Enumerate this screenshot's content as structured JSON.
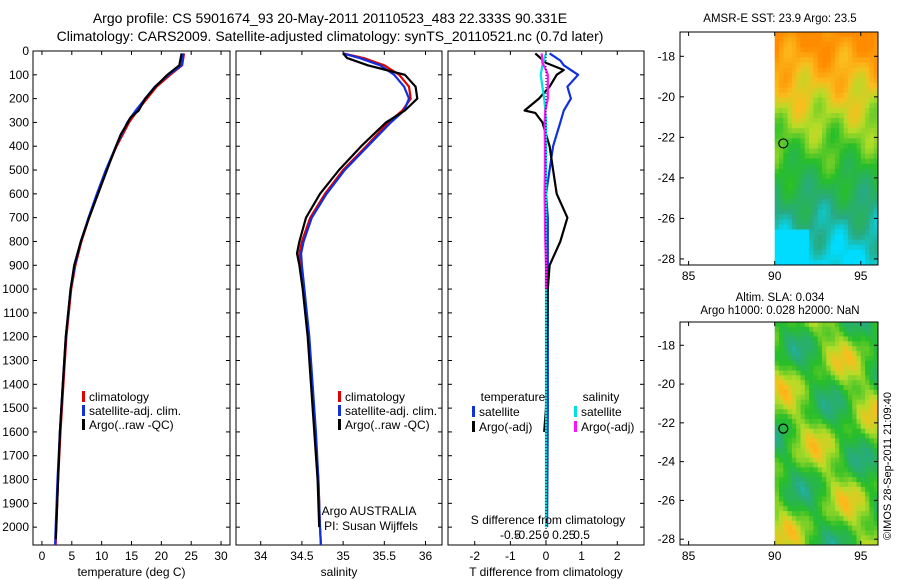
{
  "header": {
    "line1": "Argo profile: CS 5901674_93 20-May-2011 20110523_483 22.333S 90.331E",
    "line2": "Climatology: CARS2009. Satellite-adjusted climatology: synTS_20110521.nc (0.7d later)"
  },
  "stamp": "©IMOS 28-Sep-2011 21:09:40",
  "colors": {
    "climatology": "#e00000",
    "satellite": "#1030e0",
    "argo": "#000000",
    "sal_sat": "#00e0e0",
    "sal_argo": "#ff10ff"
  },
  "chart_data": [
    {
      "type": "line",
      "name": "temperature-profile",
      "xlabel": "temperature (deg C)",
      "ylabel": "",
      "xlim": [
        -1.5,
        31.5
      ],
      "ylim": [
        2075,
        0
      ],
      "xticks": [
        0,
        5,
        10,
        15,
        20,
        25,
        30
      ],
      "yticks": [
        0,
        100,
        200,
        300,
        400,
        500,
        600,
        700,
        800,
        900,
        1000,
        1100,
        1200,
        1300,
        1400,
        1500,
        1600,
        1700,
        1800,
        1900,
        2000
      ],
      "legend": [
        "climatology",
        "satellite-adj. clim.",
        "Argo(..raw -QC)"
      ],
      "series": [
        {
          "name": "climatology",
          "color": "#e00000",
          "depth": [
            10,
            60,
            100,
            150,
            200,
            250,
            300,
            400,
            500,
            600,
            700,
            800,
            900,
            1000,
            1200,
            1400,
            1600,
            1800,
            2000,
            2075
          ],
          "values": [
            23.8,
            23.5,
            21.5,
            19.2,
            17.6,
            16.0,
            14.6,
            12.5,
            10.8,
            9.3,
            7.9,
            6.6,
            5.6,
            4.9,
            4.1,
            3.6,
            3.1,
            2.7,
            2.4,
            2.3
          ]
        },
        {
          "name": "satellite-adj. clim.",
          "color": "#1030e0",
          "depth": [
            10,
            60,
            100,
            150,
            200,
            250,
            300,
            400,
            500,
            600,
            700,
            800,
            900,
            1000,
            1200,
            1400,
            1600,
            1800,
            2000,
            2075
          ],
          "values": [
            23.7,
            23.4,
            21.2,
            18.9,
            17.3,
            15.7,
            14.3,
            12.4,
            10.7,
            9.2,
            7.8,
            6.5,
            5.5,
            4.8,
            4.0,
            3.5,
            3.0,
            2.6,
            2.3,
            2.2
          ]
        },
        {
          "name": "Argo(..raw -QC)",
          "color": "#000000",
          "depth": [
            10,
            60,
            100,
            150,
            200,
            250,
            280,
            300,
            350,
            400,
            500,
            600,
            700,
            800,
            900,
            1000,
            1200,
            1400,
            1600,
            1800,
            2000,
            2050
          ],
          "values": [
            23.4,
            23.0,
            21.0,
            19.0,
            17.3,
            16.2,
            14.8,
            14.4,
            13.2,
            12.4,
            10.9,
            9.4,
            7.9,
            6.5,
            5.4,
            4.8,
            4.0,
            3.5,
            3.0,
            2.7,
            2.4,
            2.3
          ]
        }
      ]
    },
    {
      "type": "line",
      "name": "salinity-profile",
      "xlabel": "salinity",
      "xlim": [
        33.7,
        36.2
      ],
      "ylim": [
        2075,
        0
      ],
      "xticks": [
        34,
        34.5,
        35,
        35.5,
        36
      ],
      "legend": [
        "climatology",
        "satellite-adj. clim.",
        "Argo(..raw -QC)"
      ],
      "footnote1": "Argo AUSTRALIA",
      "footnote2": "PI: Susan Wijffels",
      "series": [
        {
          "name": "climatology",
          "color": "#e00000",
          "depth": [
            10,
            30,
            60,
            100,
            150,
            200,
            250,
            300,
            400,
            500,
            600,
            700,
            800,
            850,
            900,
            1000,
            1200,
            1400,
            1600,
            1800,
            2000,
            2075
          ],
          "values": [
            35.0,
            35.25,
            35.5,
            35.68,
            35.8,
            35.82,
            35.72,
            35.55,
            35.28,
            35.0,
            34.78,
            34.6,
            34.5,
            34.47,
            34.48,
            34.52,
            34.58,
            34.62,
            34.66,
            34.7,
            34.72,
            34.73
          ]
        },
        {
          "name": "satellite-adj. clim.",
          "color": "#1030e0",
          "depth": [
            10,
            30,
            60,
            100,
            150,
            200,
            250,
            300,
            400,
            500,
            600,
            700,
            800,
            850,
            900,
            1000,
            1200,
            1400,
            1600,
            1800,
            2000,
            2075
          ],
          "values": [
            35.0,
            35.2,
            35.45,
            35.62,
            35.74,
            35.8,
            35.74,
            35.58,
            35.3,
            35.02,
            34.8,
            34.62,
            34.52,
            34.49,
            34.5,
            34.53,
            34.59,
            34.63,
            34.67,
            34.7,
            34.72,
            34.73
          ]
        },
        {
          "name": "Argo(..raw -QC)",
          "color": "#000000",
          "depth": [
            10,
            30,
            60,
            100,
            150,
            200,
            250,
            300,
            400,
            500,
            600,
            700,
            800,
            850,
            900,
            1000,
            1200,
            1400,
            1600,
            1800,
            2000
          ],
          "values": [
            35.0,
            35.05,
            35.3,
            35.75,
            35.88,
            35.9,
            35.75,
            35.52,
            35.22,
            34.95,
            34.72,
            34.55,
            34.47,
            34.44,
            34.47,
            34.51,
            34.57,
            34.61,
            34.65,
            34.69,
            34.71
          ]
        }
      ]
    },
    {
      "type": "line",
      "name": "difference-profile",
      "xlabel": "T difference from climatology",
      "xlabel_top": "S difference from climatology",
      "xlim": [
        -2.75,
        2.75
      ],
      "ylim": [
        2075,
        0
      ],
      "xticks": [
        -2,
        -1,
        0,
        1,
        2
      ],
      "sticks_values": [
        -0.5,
        -0.25,
        0,
        0.25,
        0.5
      ],
      "sticks_labels": [
        "-0.5",
        "-0.25",
        "0",
        "0.25",
        "0.5"
      ],
      "legend_temperature": "temperature",
      "legend_salinity": "salinity",
      "legend_items": [
        "satellite",
        "Argo(-adj)",
        "satellite",
        "Argo(-adj)"
      ],
      "series": [
        {
          "name": "T satellite",
          "color": "#1030e0",
          "depth": [
            10,
            40,
            60,
            100,
            150,
            200,
            250,
            300,
            400,
            500,
            600,
            700,
            800,
            1000,
            1500,
            2000
          ],
          "values": [
            0.1,
            0.4,
            0.5,
            0.9,
            0.6,
            0.7,
            0.5,
            0.4,
            0.2,
            0.1,
            0.0,
            0.05,
            0.05,
            0.05,
            0.05,
            0.03
          ]
        },
        {
          "name": "T Argo(-adj)",
          "color": "#000000",
          "depth": [
            10,
            50,
            80,
            100,
            150,
            200,
            250,
            260,
            300,
            400,
            500,
            600,
            700,
            800,
            900,
            1000,
            1500,
            1600
          ],
          "values": [
            -0.3,
            0.0,
            0.5,
            0.3,
            0.1,
            -0.2,
            -0.6,
            -0.3,
            -0.1,
            0.1,
            0.2,
            0.3,
            0.6,
            0.4,
            0.1,
            0.05,
            0.0,
            -0.05
          ]
        },
        {
          "name": "S satellite",
          "color": "#00e0e0",
          "depth": [
            10,
            30,
            60,
            100,
            150,
            200,
            250,
            300,
            400,
            500,
            600,
            800,
            1000,
            1500,
            2000
          ],
          "values": [
            0.0,
            -0.04,
            -0.1,
            -0.15,
            -0.1,
            -0.05,
            -0.02,
            0.0,
            0.0,
            0.0,
            0.0,
            0.0,
            0.0,
            0.0,
            0.0
          ]
        },
        {
          "name": "S Argo(-adj)",
          "color": "#ff10ff",
          "depth": [
            10,
            50,
            80,
            100,
            150,
            200,
            250,
            300,
            400,
            500,
            600,
            700,
            800,
            900,
            1000
          ],
          "values": [
            -0.12,
            -0.1,
            0.0,
            0.05,
            0.05,
            0.05,
            -0.02,
            -0.04,
            -0.03,
            -0.03,
            -0.04,
            -0.03,
            -0.02,
            0.0,
            0.0
          ]
        }
      ]
    },
    {
      "type": "heatmap",
      "name": "sst-map",
      "title": "AMSR-E SST: 23.9  Argo: 23.5",
      "xlim": [
        84.5,
        96
      ],
      "ylim": [
        -28.3,
        -16.8
      ],
      "xticks": [
        85,
        90,
        95
      ],
      "yticks": [
        -18,
        -20,
        -22,
        -24,
        -26,
        -28
      ],
      "data_region_lon": [
        90,
        96
      ],
      "marker": {
        "lon": 90.5,
        "lat": -22.3
      }
    },
    {
      "type": "heatmap",
      "name": "sla-map",
      "title_line1": "Altim. SLA: 0.034",
      "title_line2": "Argo h1000: 0.028 h2000: NaN",
      "xlim": [
        84.5,
        96
      ],
      "ylim": [
        -28.3,
        -16.8
      ],
      "xticks": [
        85,
        90,
        95
      ],
      "yticks": [
        -18,
        -20,
        -22,
        -24,
        -26,
        -28
      ],
      "data_region_lon": [
        90,
        96
      ],
      "marker": {
        "lon": 90.5,
        "lat": -22.3
      }
    }
  ]
}
